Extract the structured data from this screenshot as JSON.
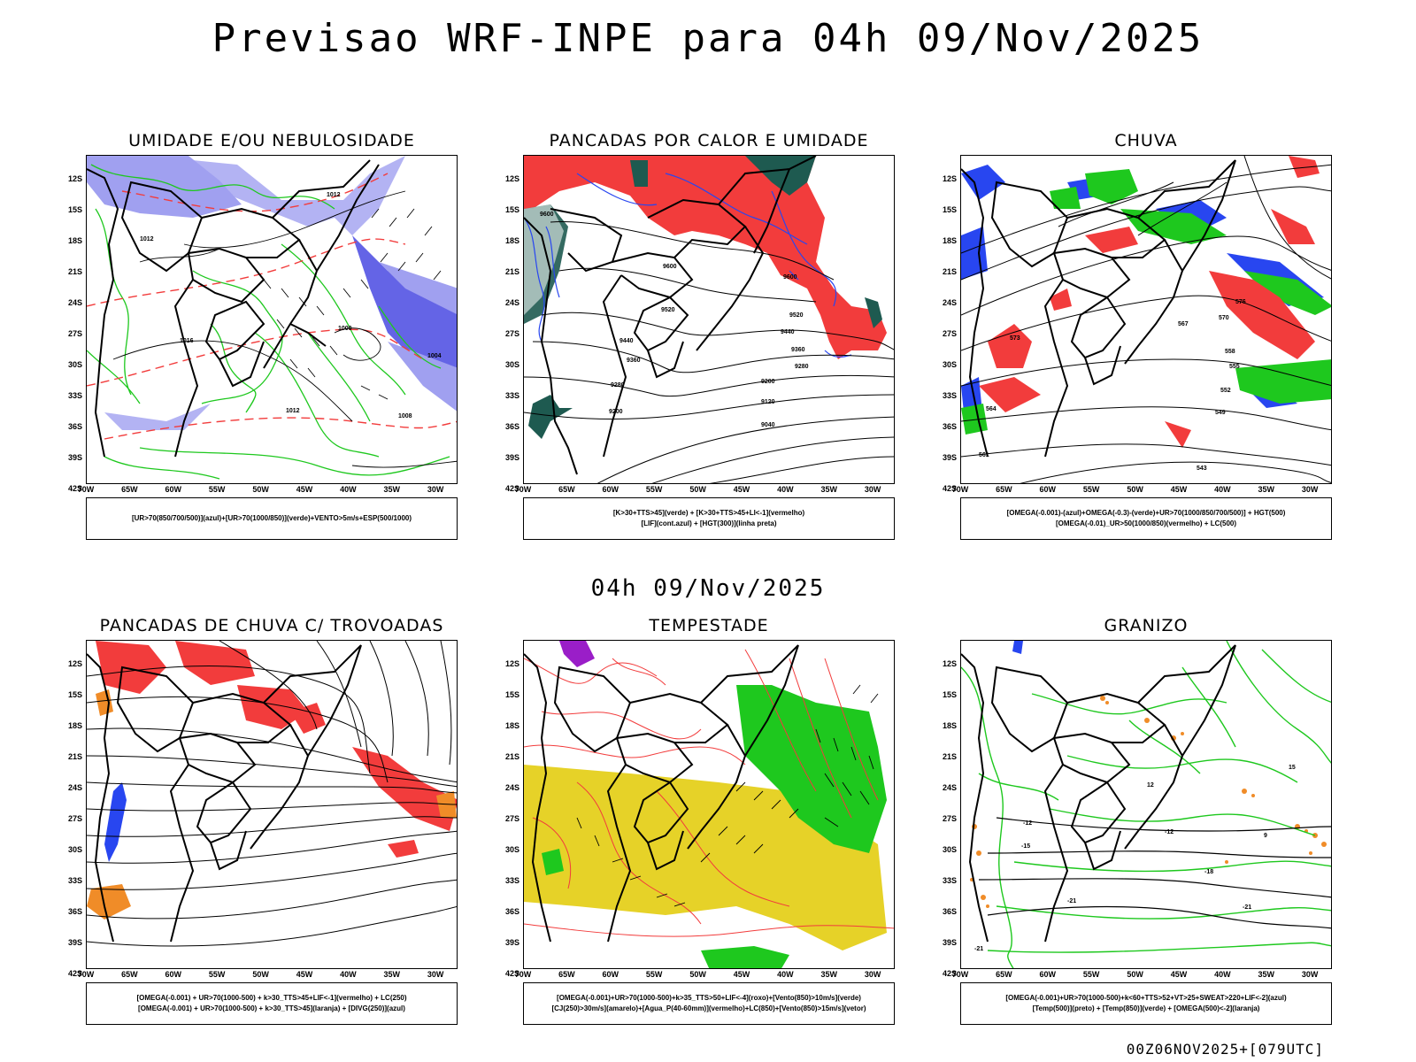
{
  "title": "Previsao WRF-INPE  para 04h 09/Nov/2025",
  "subtitle": "04h 09/Nov/2025",
  "footer": "00Z06NOV2025+[079UTC]",
  "lat_labels": [
    "12S",
    "15S",
    "18S",
    "21S",
    "24S",
    "27S",
    "30S",
    "33S",
    "36S",
    "39S",
    "42S"
  ],
  "lon_labels": [
    "70W",
    "65W",
    "60W",
    "55W",
    "50W",
    "45W",
    "40W",
    "35W",
    "30W"
  ],
  "panels": [
    {
      "title": "UMIDADE E/OU NEBULOSIDADE",
      "legend": [
        "[UR>70(850/700/500)](azul)+[UR>70(1000/850)](verde)+VENTO>5m/s+ESP(500/1000)"
      ],
      "contour_labels": [
        "1012",
        "1012",
        "1012",
        "1016",
        "1008",
        "1004",
        "1000"
      ]
    },
    {
      "title": "PANCADAS POR CALOR E UMIDADE",
      "legend": [
        "[K>30+TTS>45](verde) + [K>30+TTS>45+LI<-1](vermelho)",
        "[LIF](cont.azul) + [HGT(300)](linha preta)"
      ],
      "contour_labels": [
        "9600",
        "9600",
        "9600",
        "9520",
        "9520",
        "9440",
        "9440",
        "9360",
        "9360",
        "9280",
        "9280",
        "9200",
        "9200",
        "9120",
        "9040"
      ]
    },
    {
      "title": "CHUVA",
      "legend": [
        "[OMEGA(-0.001)-(azul)+OMEGA(-0.3)-(verde)+UR>70(1000/850/700/500)] + HGT(500)",
        "[OMEGA(-0.01)_UR>50(1000/850)(vermelho) + LC(500)"
      ],
      "contour_labels": [
        "576",
        "573",
        "570",
        "567",
        "564",
        "561",
        "558",
        "555",
        "552",
        "549",
        "543"
      ]
    },
    {
      "title": "PANCADAS DE CHUVA C/ TROVOADAS",
      "legend": [
        "[OMEGA(-0.001) + UR>70(1000-500) + k>30_TTS>45+LIF<-1](vermelho) + LC(250)",
        "[OMEGA(-0.001) + UR>70(1000-500) + k>30_TTS>45](laranja) + [DIVG(250)](azul)"
      ],
      "contour_labels": []
    },
    {
      "title": "TEMPESTADE",
      "legend": [
        "[OMEGA(-0.001)+UR>70(1000-500)+k>35_TTS>50+LIF<-4](roxo)+[Vento(850)>10m/s](verde)",
        "[CJ(250)>30m/s](amarelo)+[Agua_P(40-60mm)](vermelho)+LC(850)+[Vento(850)>15m/s](vetor)"
      ],
      "contour_labels": []
    },
    {
      "title": "GRANIZO",
      "legend": [
        "[OMEGA(-0.001)+UR>70(1000-500)+k<60+TTS>52+VT>25+SWEAT>220+LIF<-2](azul)",
        "[Temp(500)](preto) + [Temp(850)](verde) + [OMEGA(500)<-2](laranja)"
      ],
      "contour_labels": [
        "-12",
        "-12",
        "-15",
        "-18",
        "-21",
        "-21",
        "-21",
        "15",
        "12",
        "9"
      ]
    }
  ],
  "colors": {
    "red": "#f23c3c",
    "green": "#1ec81e",
    "blue": "#2846f0",
    "lavender": "#a0a0f0",
    "yellow": "#e6d228",
    "orange": "#f08c28",
    "purple": "#9a1ec8",
    "teal": "#1e5a50"
  }
}
